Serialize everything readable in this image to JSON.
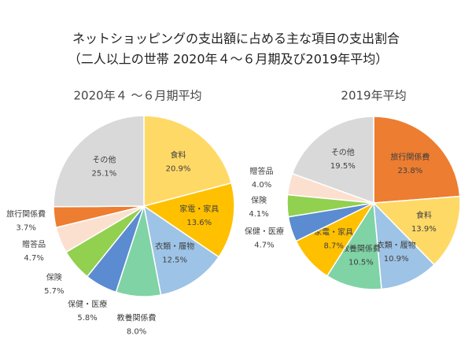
{
  "title": "ネットショッピングの支出額に占める主な項目の支出割合",
  "subtitle": "（二人以上の世帯 2020年４～６月期及び2019年平均）",
  "chart_data": [
    {
      "type": "pie",
      "title": "2020年４ ～６月期平均",
      "categories": [
        "食料",
        "家電・家具",
        "衣類・履物",
        "教養関係費",
        "保健・医療",
        "保険",
        "贈答品",
        "旅行関係費",
        "その他"
      ],
      "values": [
        20.9,
        13.6,
        12.5,
        8.0,
        5.8,
        5.7,
        4.7,
        3.7,
        25.1
      ],
      "value_labels": [
        "20.9%",
        "13.6%",
        "12.5%",
        "8.0%",
        "5.8%",
        "5.7%",
        "4.7%",
        "3.7%",
        "25.1%"
      ],
      "colors": [
        "#FFD966",
        "#FFC000",
        "#9DC3E6",
        "#7FD3A5",
        "#5B8BD0",
        "#92D050",
        "#FBE0D0",
        "#ED7D31",
        "#D9D9D9"
      ]
    },
    {
      "type": "pie",
      "title": "2019年平均",
      "categories": [
        "旅行関係費",
        "食料",
        "衣類・履物",
        "教養関係費",
        "家電・家具",
        "保健・医療",
        "保険",
        "贈答品",
        "その他"
      ],
      "values": [
        23.8,
        13.9,
        10.9,
        10.5,
        8.7,
        4.7,
        4.1,
        4.0,
        19.5
      ],
      "value_labels": [
        "23.8%",
        "13.9%",
        "10.9%",
        "10.5%",
        "8.7%",
        "4.7%",
        "4.1%",
        "4.0%",
        "19.5%"
      ],
      "colors": [
        "#ED7D31",
        "#FFD966",
        "#9DC3E6",
        "#7FD3A5",
        "#FFC000",
        "#5B8BD0",
        "#92D050",
        "#FBE0D0",
        "#D9D9D9"
      ]
    }
  ]
}
